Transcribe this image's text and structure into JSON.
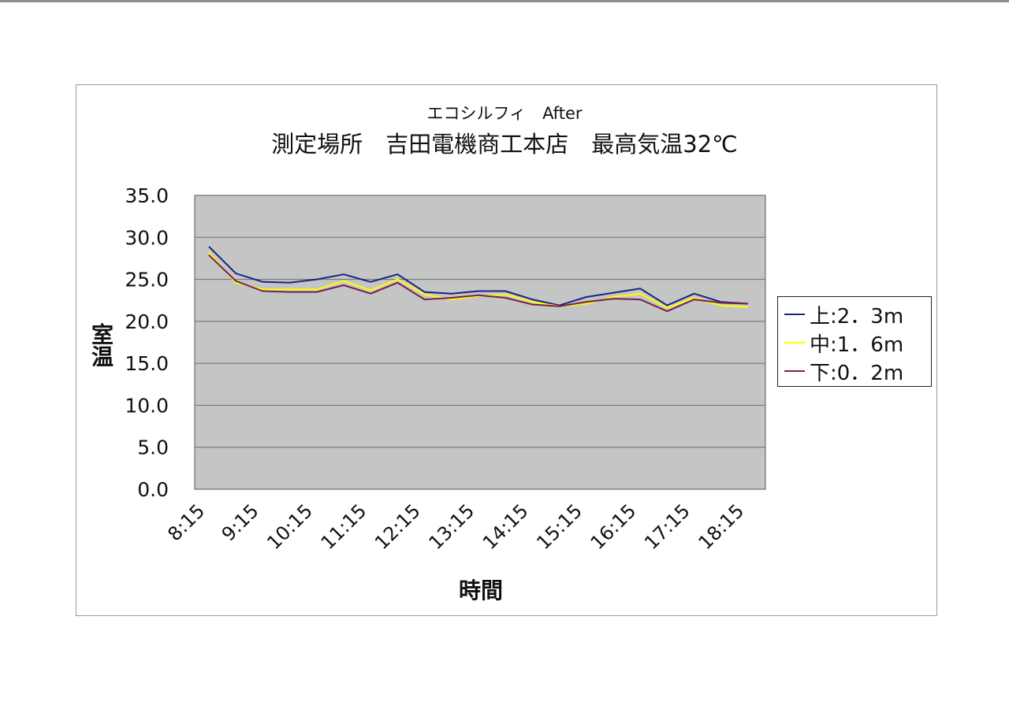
{
  "chart_data": {
    "type": "line",
    "title": "測定場所　吉田電機商工本店　最高気温32℃",
    "subtitle": "エコシルフィ　After",
    "xlabel": "時間",
    "ylabel": "室温",
    "ylim": [
      0,
      35
    ],
    "yticks": [
      "35.0",
      "30.0",
      "25.0",
      "20.0",
      "15.0",
      "10.0",
      "5.0",
      "0.0"
    ],
    "ytick_values": [
      35,
      30,
      25,
      20,
      15,
      10,
      5,
      0
    ],
    "categories": [
      "8:15",
      "8:45",
      "9:15",
      "9:45",
      "10:15",
      "10:45",
      "11:15",
      "11:45",
      "12:15",
      "12:45",
      "13:15",
      "13:45",
      "14:15",
      "14:45",
      "15:15",
      "15:45",
      "16:15",
      "16:45",
      "17:15",
      "17:45",
      "18:15"
    ],
    "xtick_labels": [
      "8:15",
      "9:15",
      "10:15",
      "11:15",
      "12:15",
      "13:15",
      "14:15",
      "15:15",
      "16:15",
      "17:15",
      "18:15"
    ],
    "grid": true,
    "legend_position": "right",
    "background": "#c4c6c6",
    "series": [
      {
        "name": "上:2．3m",
        "color": "#1a237e",
        "values": [
          28.9,
          25.7,
          24.7,
          24.6,
          25.0,
          25.6,
          24.7,
          25.6,
          23.5,
          23.3,
          23.6,
          23.6,
          22.6,
          21.9,
          22.9,
          23.4,
          23.9,
          21.9,
          23.3,
          22.3,
          22.1
        ]
      },
      {
        "name": "中:1．6m",
        "color": "#ffff00",
        "values": [
          28.2,
          24.6,
          23.8,
          23.8,
          23.8,
          24.8,
          23.7,
          25.0,
          23.2,
          22.6,
          23.0,
          23.2,
          22.3,
          21.8,
          22.1,
          22.9,
          23.3,
          21.6,
          22.8,
          21.9,
          21.7
        ]
      },
      {
        "name": "下:0．2m",
        "color": "#7a1f4e",
        "values": [
          27.9,
          24.8,
          23.6,
          23.5,
          23.5,
          24.3,
          23.3,
          24.6,
          22.6,
          22.8,
          23.1,
          22.8,
          22.0,
          21.8,
          22.3,
          22.7,
          22.6,
          21.2,
          22.6,
          22.2,
          22.1
        ]
      }
    ]
  }
}
